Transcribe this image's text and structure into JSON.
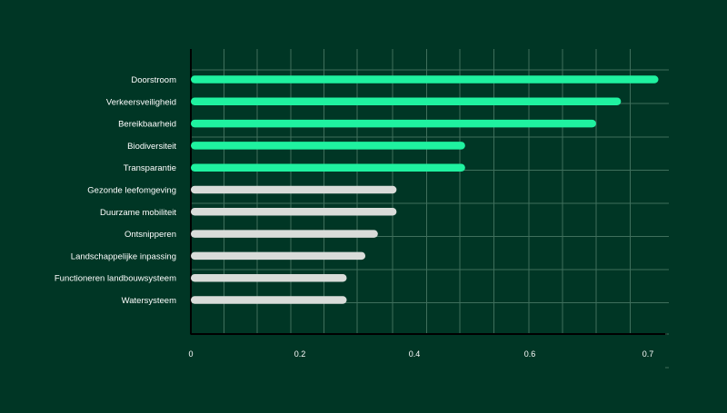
{
  "chart_data": {
    "type": "bar",
    "orientation": "horizontal",
    "categories": [
      "Doorstroom",
      "Verkeersveiligheid",
      "Bereikbaarheid",
      "Biodiversiteit",
      "Transparantie",
      "Gezonde leefomgeving",
      "Duurzame mobiliteit",
      "Ontsnipperen",
      "Landschappelijke inpassing",
      "Functioneren landbouwsysteem",
      "Watersysteem"
    ],
    "values": [
      0.75,
      0.69,
      0.65,
      0.44,
      0.44,
      0.33,
      0.33,
      0.3,
      0.28,
      0.25,
      0.25
    ],
    "highlighted": [
      true,
      true,
      true,
      true,
      true,
      false,
      false,
      false,
      false,
      false,
      false
    ],
    "xticks": [
      "0",
      "0.2",
      "0.4",
      "0.6",
      "0.7"
    ],
    "title": "",
    "xlabel": "",
    "ylabel": "",
    "xlim": [
      0,
      0.81
    ],
    "grid": true,
    "legend": "none",
    "colors": {
      "background": "#003625",
      "highlight": "#1ff2a0",
      "default": "#d9dcd9",
      "grid": "#3f6f5c",
      "axis": "#000000",
      "text": "#ffffff"
    }
  }
}
